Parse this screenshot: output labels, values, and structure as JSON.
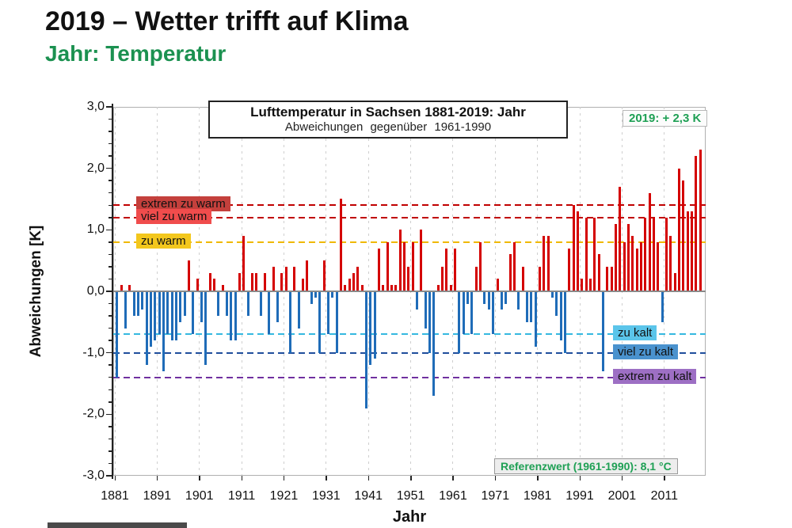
{
  "page": {
    "title": "2019 – Wetter trifft auf Klima",
    "subtitle": "Jahr: Temperatur"
  },
  "chart_data": {
    "type": "bar",
    "title": "Lufttemperatur in Sachsen 1881-2019: Jahr",
    "subtitle": "Abweichungen gegenüber 1961-1990",
    "xlabel": "Jahr",
    "ylabel": "Abweichungen [K]",
    "ylim": [
      -3.0,
      3.0
    ],
    "xlim": [
      1881,
      2019
    ],
    "grid": "vertical-dashed",
    "ytick_values": [
      3,
      2,
      1,
      0,
      -1,
      -2,
      -3
    ],
    "ytick_labels": [
      "3,0",
      "2,0",
      "1,0",
      "0,0",
      "-1,0",
      "-2,0",
      "-3,0"
    ],
    "xtick_labels": [
      "1881",
      "1891",
      "1901",
      "1911",
      "1921",
      "1931",
      "1941",
      "1951",
      "1961",
      "1971",
      "1981",
      "1991",
      "2001",
      "2011"
    ],
    "annotation_2019": "2019: + 2,3 K",
    "reference_note": "Referenzwert (1961-1990): 8,1 °C",
    "bar_color_positive": "#D40000",
    "bar_color_negative": "#1F6CB8",
    "year_start": 1881,
    "values": [
      -1.4,
      0.1,
      -0.6,
      0.1,
      -0.4,
      -0.4,
      -0.3,
      -1.2,
      -0.9,
      -0.8,
      -0.7,
      -1.3,
      -0.7,
      -0.8,
      -0.8,
      -0.5,
      -0.4,
      0.5,
      -0.7,
      0.2,
      -0.5,
      -1.2,
      0.3,
      0.2,
      -0.4,
      0.1,
      -0.4,
      -0.8,
      -0.8,
      0.3,
      0.9,
      -0.4,
      0.3,
      0.3,
      -0.4,
      0.3,
      -0.7,
      0.4,
      -0.5,
      0.3,
      0.4,
      -1.0,
      0.4,
      -0.6,
      0.2,
      0.5,
      -0.2,
      -0.1,
      -1.0,
      0.5,
      -0.7,
      -0.1,
      -1.0,
      1.5,
      0.1,
      0.2,
      0.3,
      0.4,
      0.1,
      -1.9,
      -1.2,
      -1.1,
      0.7,
      0.1,
      0.8,
      0.1,
      0.1,
      1.0,
      0.8,
      0.4,
      0.8,
      -0.3,
      1.0,
      -0.6,
      -1.0,
      -1.7,
      0.1,
      0.4,
      0.7,
      0.1,
      0.7,
      -1.0,
      -0.7,
      -0.2,
      -0.7,
      0.4,
      0.8,
      -0.2,
      -0.3,
      -0.7,
      0.2,
      -0.3,
      -0.2,
      0.6,
      0.8,
      -0.3,
      0.4,
      -0.5,
      -0.5,
      -0.9,
      0.4,
      0.9,
      0.9,
      -0.1,
      -0.4,
      -0.8,
      -1.0,
      0.7,
      1.4,
      1.3,
      0.2,
      1.2,
      0.2,
      1.2,
      0.6,
      -1.3,
      0.4,
      0.4,
      1.1,
      1.7,
      0.8,
      1.1,
      0.9,
      0.7,
      0.8,
      1.2,
      1.6,
      1.2,
      0.8,
      -0.5,
      1.2,
      0.9,
      0.3,
      2.0,
      1.8,
      1.3,
      1.3,
      2.2,
      2.3
    ],
    "thresholds": [
      {
        "label": "extrem zu warm",
        "value": 1.4,
        "line_color": "#C00000",
        "label_bg": "#C4403C",
        "side": "left"
      },
      {
        "label": "viel zu warm",
        "value": 1.2,
        "line_color": "#C00000",
        "label_bg": "#F04C4C",
        "side": "left"
      },
      {
        "label": "zu warm",
        "value": 0.8,
        "line_color": "#F0B800",
        "label_bg": "#F3C71D",
        "side": "left"
      },
      {
        "label": "zu kalt",
        "value": -0.7,
        "line_color": "#35B8E0",
        "label_bg": "#5BC5EA",
        "side": "right"
      },
      {
        "label": "viel zu kalt",
        "value": -1.0,
        "line_color": "#1F4E9C",
        "label_bg": "#4A92CE",
        "side": "right"
      },
      {
        "label": "extrem zu kalt",
        "value": -1.4,
        "line_color": "#7030A0",
        "label_bg": "#9D6FC4",
        "side": "right"
      }
    ]
  }
}
